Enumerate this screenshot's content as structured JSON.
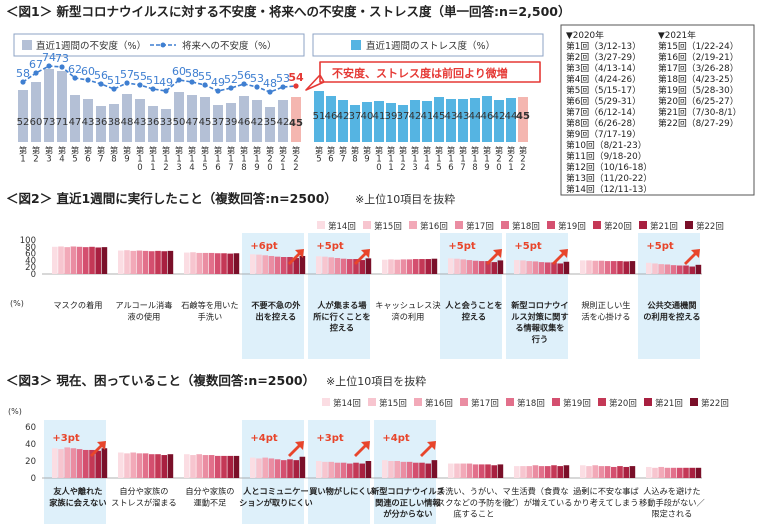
{
  "chart_data": [
    {
      "type": "bar+line",
      "title": "＜図1＞ 新型コロナウイルスに対する不安度・将来への不安度・ストレス度（単一回答:n=2,500）",
      "left_panel": {
        "legend_bar": "直近1週間の不安度（%）",
        "legend_line": "将来への不安度（%）",
        "categories": [
          "第1回",
          "第2回",
          "第3回",
          "第4回",
          "第5回",
          "第6回",
          "第7回",
          "第8回",
          "第9回",
          "第10回",
          "第11回",
          "第12回",
          "第13回",
          "第14回",
          "第15回",
          "第16回",
          "第17回",
          "第18回",
          "第19回",
          "第20回",
          "第21回",
          "第22回"
        ],
        "bar_values": [
          52,
          60,
          73,
          71,
          47,
          43,
          36,
          38,
          48,
          43,
          36,
          33,
          50,
          47,
          45,
          37,
          39,
          46,
          42,
          35,
          42,
          45
        ],
        "line_values": [
          58,
          67,
          74,
          73,
          62,
          60,
          56,
          51,
          57,
          55,
          51,
          49,
          60,
          58,
          55,
          49,
          52,
          56,
          53,
          48,
          53,
          54
        ],
        "bar_labels": [
          "52",
          "60",
          "73",
          "71",
          "47",
          "43",
          "36",
          "38",
          "48",
          "43",
          "36",
          "33",
          "50",
          "47",
          "45",
          "37",
          "39",
          "46",
          "42",
          "35",
          "42",
          "45"
        ],
        "line_labels": [
          "58",
          "67",
          "74",
          "73",
          "62",
          "60",
          "56",
          "51",
          "57",
          "55",
          "51",
          "49",
          "60",
          "58",
          "55",
          "49",
          "52",
          "56",
          "53",
          "48",
          "53",
          "54"
        ],
        "tick_labels": [
          "第1回",
          "第2回",
          "第3回",
          "第4回",
          "第5回",
          "第6回",
          "第7回",
          "第8回",
          "第9回",
          "第10回",
          "第11回",
          "第12回",
          "第13回",
          "第14回",
          "第15回",
          "第16回",
          "第17回",
          "第18回",
          "第19回",
          "第20回",
          "第21回",
          "第22回"
        ]
      },
      "right_panel": {
        "legend_bar": "直近1週間のストレス度（%）",
        "categories": [
          "第5回",
          "第6回",
          "第7回",
          "第8回",
          "第9回",
          "第10回",
          "第11回",
          "第12回",
          "第13回",
          "第14回",
          "第15回",
          "第16回",
          "第17回",
          "第18回",
          "第19回",
          "第20回",
          "第21回",
          "第22回"
        ],
        "values": [
          51,
          46,
          42,
          37,
          40,
          41,
          39,
          37,
          42,
          41,
          45,
          43,
          43,
          44,
          46,
          42,
          44,
          45
        ],
        "labels": [
          "51",
          "46",
          "42",
          "37",
          "40",
          "41",
          "39",
          "37",
          "42",
          "41",
          "45",
          "43",
          "43",
          "44",
          "46",
          "42",
          "44",
          "45"
        ],
        "tick_labels": [
          "第5回",
          "第6回",
          "第7回",
          "第8回",
          "第9回",
          "第10回",
          "第11回",
          "第12回",
          "第13回",
          "第14回",
          "第15回",
          "第16回",
          "第17回",
          "第18回",
          "第19回",
          "第20回",
          "第21回",
          "第22回"
        ]
      },
      "callout": "不安度、ストレス度は前回より微増",
      "survey_dates": [
        {
          "header": "▼2020年",
          "items": [
            "第1回（3/12-13）",
            "第2回（3/27-29）",
            "第3回（4/13-14）",
            "第4回（4/24-26）",
            "第5回（5/15-17）",
            "第6回（5/29-31）",
            "第7回（6/12-14）",
            "第8回（6/26-28）",
            "第9回（7/17-19）",
            "第10回（8/21-23）",
            "第11回（9/18-20）",
            "第12回（10/16-18）",
            "第13回（11/20-22）",
            "第14回（12/11-13）"
          ]
        },
        {
          "header": "▼2021年",
          "items": [
            "第15回（1/22-24）",
            "第16回（2/19-21）",
            "第17回（3/26-28）",
            "第18回（4/23-25）",
            "第19回（5/28-30）",
            "第20回（6/25-27）",
            "第21回（7/30-8/1）",
            "第22回（8/27-29）"
          ]
        }
      ]
    },
    {
      "type": "grouped-bar",
      "title": "＜図2＞ 直近1週間に実行したこと（複数回答:n=2500）",
      "note": "※上位10項目を抜粋",
      "unit": "(%)",
      "ylim": [
        0,
        100
      ],
      "yticks": [
        "100",
        "80",
        "60",
        "40",
        "20",
        "0"
      ],
      "legend": [
        "第14回",
        "第15回",
        "第16回",
        "第17回",
        "第18回",
        "第19回",
        "第20回",
        "第21回",
        "第22回"
      ],
      "categories": [
        "マスクの着用",
        "アルコール消毒液の使用",
        "石鹸等を用いた手洗い",
        "不要不急の外出を控える",
        "人が集まる場所に行くことを控える",
        "キャッシュレス決済の利用",
        "人と会うことを控える",
        "新型コロナウイルス対策に関する情報収集を行う",
        "規則正しい生活を心掛ける",
        "公共交通機関の利用を控える"
      ],
      "category_labels": [
        "マスクの着用",
        "アルコール消毒\n液の使用",
        "石鹸等を用いた\n手洗い",
        "不要不急の外\n出を控える",
        "人が集まる場\n所に行くことを\n控える",
        "キャッシュレス決\n済の利用",
        "人と会うことを\n控える",
        "新型コロナウイ\nルス対策に関す\nる情報収集を\n行う",
        "規則正しい生\n活を心掛ける",
        "公共交通機関\nの利用を控える"
      ],
      "highlighted": [
        3,
        4,
        6,
        7,
        9
      ],
      "annotations": [
        {
          "index": 3,
          "text": "+6pt"
        },
        {
          "index": 4,
          "text": "+5pt"
        },
        {
          "index": 6,
          "text": "+5pt"
        },
        {
          "index": 7,
          "text": "+5pt"
        },
        {
          "index": 9,
          "text": "+5pt"
        }
      ],
      "series_values": [
        [
          80,
          81,
          79,
          81,
          80,
          79,
          80,
          78,
          79
        ],
        [
          69,
          70,
          68,
          69,
          68,
          67,
          68,
          67,
          68
        ],
        [
          63,
          64,
          62,
          62,
          62,
          61,
          61,
          60,
          61
        ],
        [
          58,
          57,
          55,
          53,
          51,
          50,
          50,
          47,
          53
        ],
        [
          52,
          51,
          49,
          47,
          45,
          44,
          44,
          41,
          46
        ],
        [
          42,
          43,
          42,
          43,
          43,
          44,
          44,
          44,
          45
        ],
        [
          46,
          45,
          43,
          41,
          39,
          38,
          38,
          35,
          40
        ],
        [
          41,
          40,
          38,
          37,
          35,
          34,
          34,
          31,
          36
        ],
        [
          40,
          40,
          39,
          39,
          38,
          38,
          38,
          37,
          38
        ],
        [
          33,
          31,
          29,
          28,
          26,
          25,
          25,
          22,
          27
        ]
      ]
    },
    {
      "type": "grouped-bar",
      "title": "＜図3＞ 現在、困っていること（複数回答:n=2500）",
      "note": "※上位10項目を抜粋",
      "unit": "(%)",
      "ylim": [
        0,
        60
      ],
      "yticks": [
        "60",
        "40",
        "20",
        "0"
      ],
      "legend": [
        "第14回",
        "第15回",
        "第16回",
        "第17回",
        "第18回",
        "第19回",
        "第20回",
        "第21回",
        "第22回"
      ],
      "categories": [
        "友人や離れた家族に会えない",
        "自分や家族のストレスが溜まる",
        "自分や家族の運動不足",
        "人とコミュニケーションが取りにくい",
        "買い物がしにくい",
        "新型コロナウイルス関連の正しい情報が分からない",
        "手洗い、うがい、マスクなどの予防を徹底すること",
        "生活費（食費など）が増えている",
        "過剰に不安な事ばかり考えてしまう",
        "人込みを避けた移動手段がない／限定される"
      ],
      "category_labels": [
        "友人や離れた\n家族に会えない",
        "自分や家族の\nストレスが溜まる",
        "自分や家族の\n運動不足",
        "人とコミュニケー\nションが取りにくい",
        "買い物がしにくい",
        "新型コロナウイルス\n関連の正しい情報\nが分からない",
        "手洗い、うがい、マ\nスクなどの予防を徹\n底すること",
        "生活費（食費な\nど）が増えている",
        "過剰に不安な事ば\nかり考えてしまう",
        "人込みを避けた\n移動手段がない／\n限定される"
      ],
      "highlighted": [
        0,
        3,
        4,
        5
      ],
      "annotations": [
        {
          "index": 0,
          "text": "+3pt"
        },
        {
          "index": 3,
          "text": "+4pt"
        },
        {
          "index": 4,
          "text": "+3pt"
        },
        {
          "index": 5,
          "text": "+4pt"
        }
      ],
      "series_values": [
        [
          35,
          34,
          36,
          35,
          34,
          33,
          33,
          32,
          35
        ],
        [
          30,
          29,
          30,
          29,
          29,
          28,
          28,
          27,
          28
        ],
        [
          28,
          27,
          28,
          27,
          27,
          26,
          26,
          26,
          26
        ],
        [
          24,
          23,
          24,
          23,
          22,
          21,
          22,
          21,
          25
        ],
        [
          20,
          19,
          19,
          18,
          18,
          17,
          18,
          17,
          20
        ],
        [
          21,
          20,
          20,
          19,
          19,
          18,
          18,
          17,
          21
        ],
        [
          17,
          17,
          17,
          17,
          16,
          16,
          16,
          15,
          16
        ],
        [
          14,
          14,
          14,
          15,
          14,
          14,
          15,
          14,
          15
        ],
        [
          15,
          14,
          15,
          14,
          14,
          13,
          14,
          13,
          14
        ],
        [
          13,
          12,
          13,
          12,
          12,
          12,
          12,
          12,
          12
        ]
      ]
    }
  ],
  "colors": {
    "fig1_bar": "#b4c0d6",
    "fig1_bar_last": "#f4b6b0",
    "fig1_line": "#3f7fd1",
    "fig1_right_bar": "#55b4e2",
    "callout_border": "#e53935",
    "callout_text": "#e53935",
    "highlight_bg": "#def0fa",
    "annotation_text": "#ffffff",
    "arrow": "#e8452b",
    "series": [
      "#fbdde3",
      "#f7c5cf",
      "#f2a9b8",
      "#ea8da2",
      "#e2708b",
      "#d44f6f",
      "#c43856",
      "#a82040",
      "#7a0f29"
    ]
  }
}
